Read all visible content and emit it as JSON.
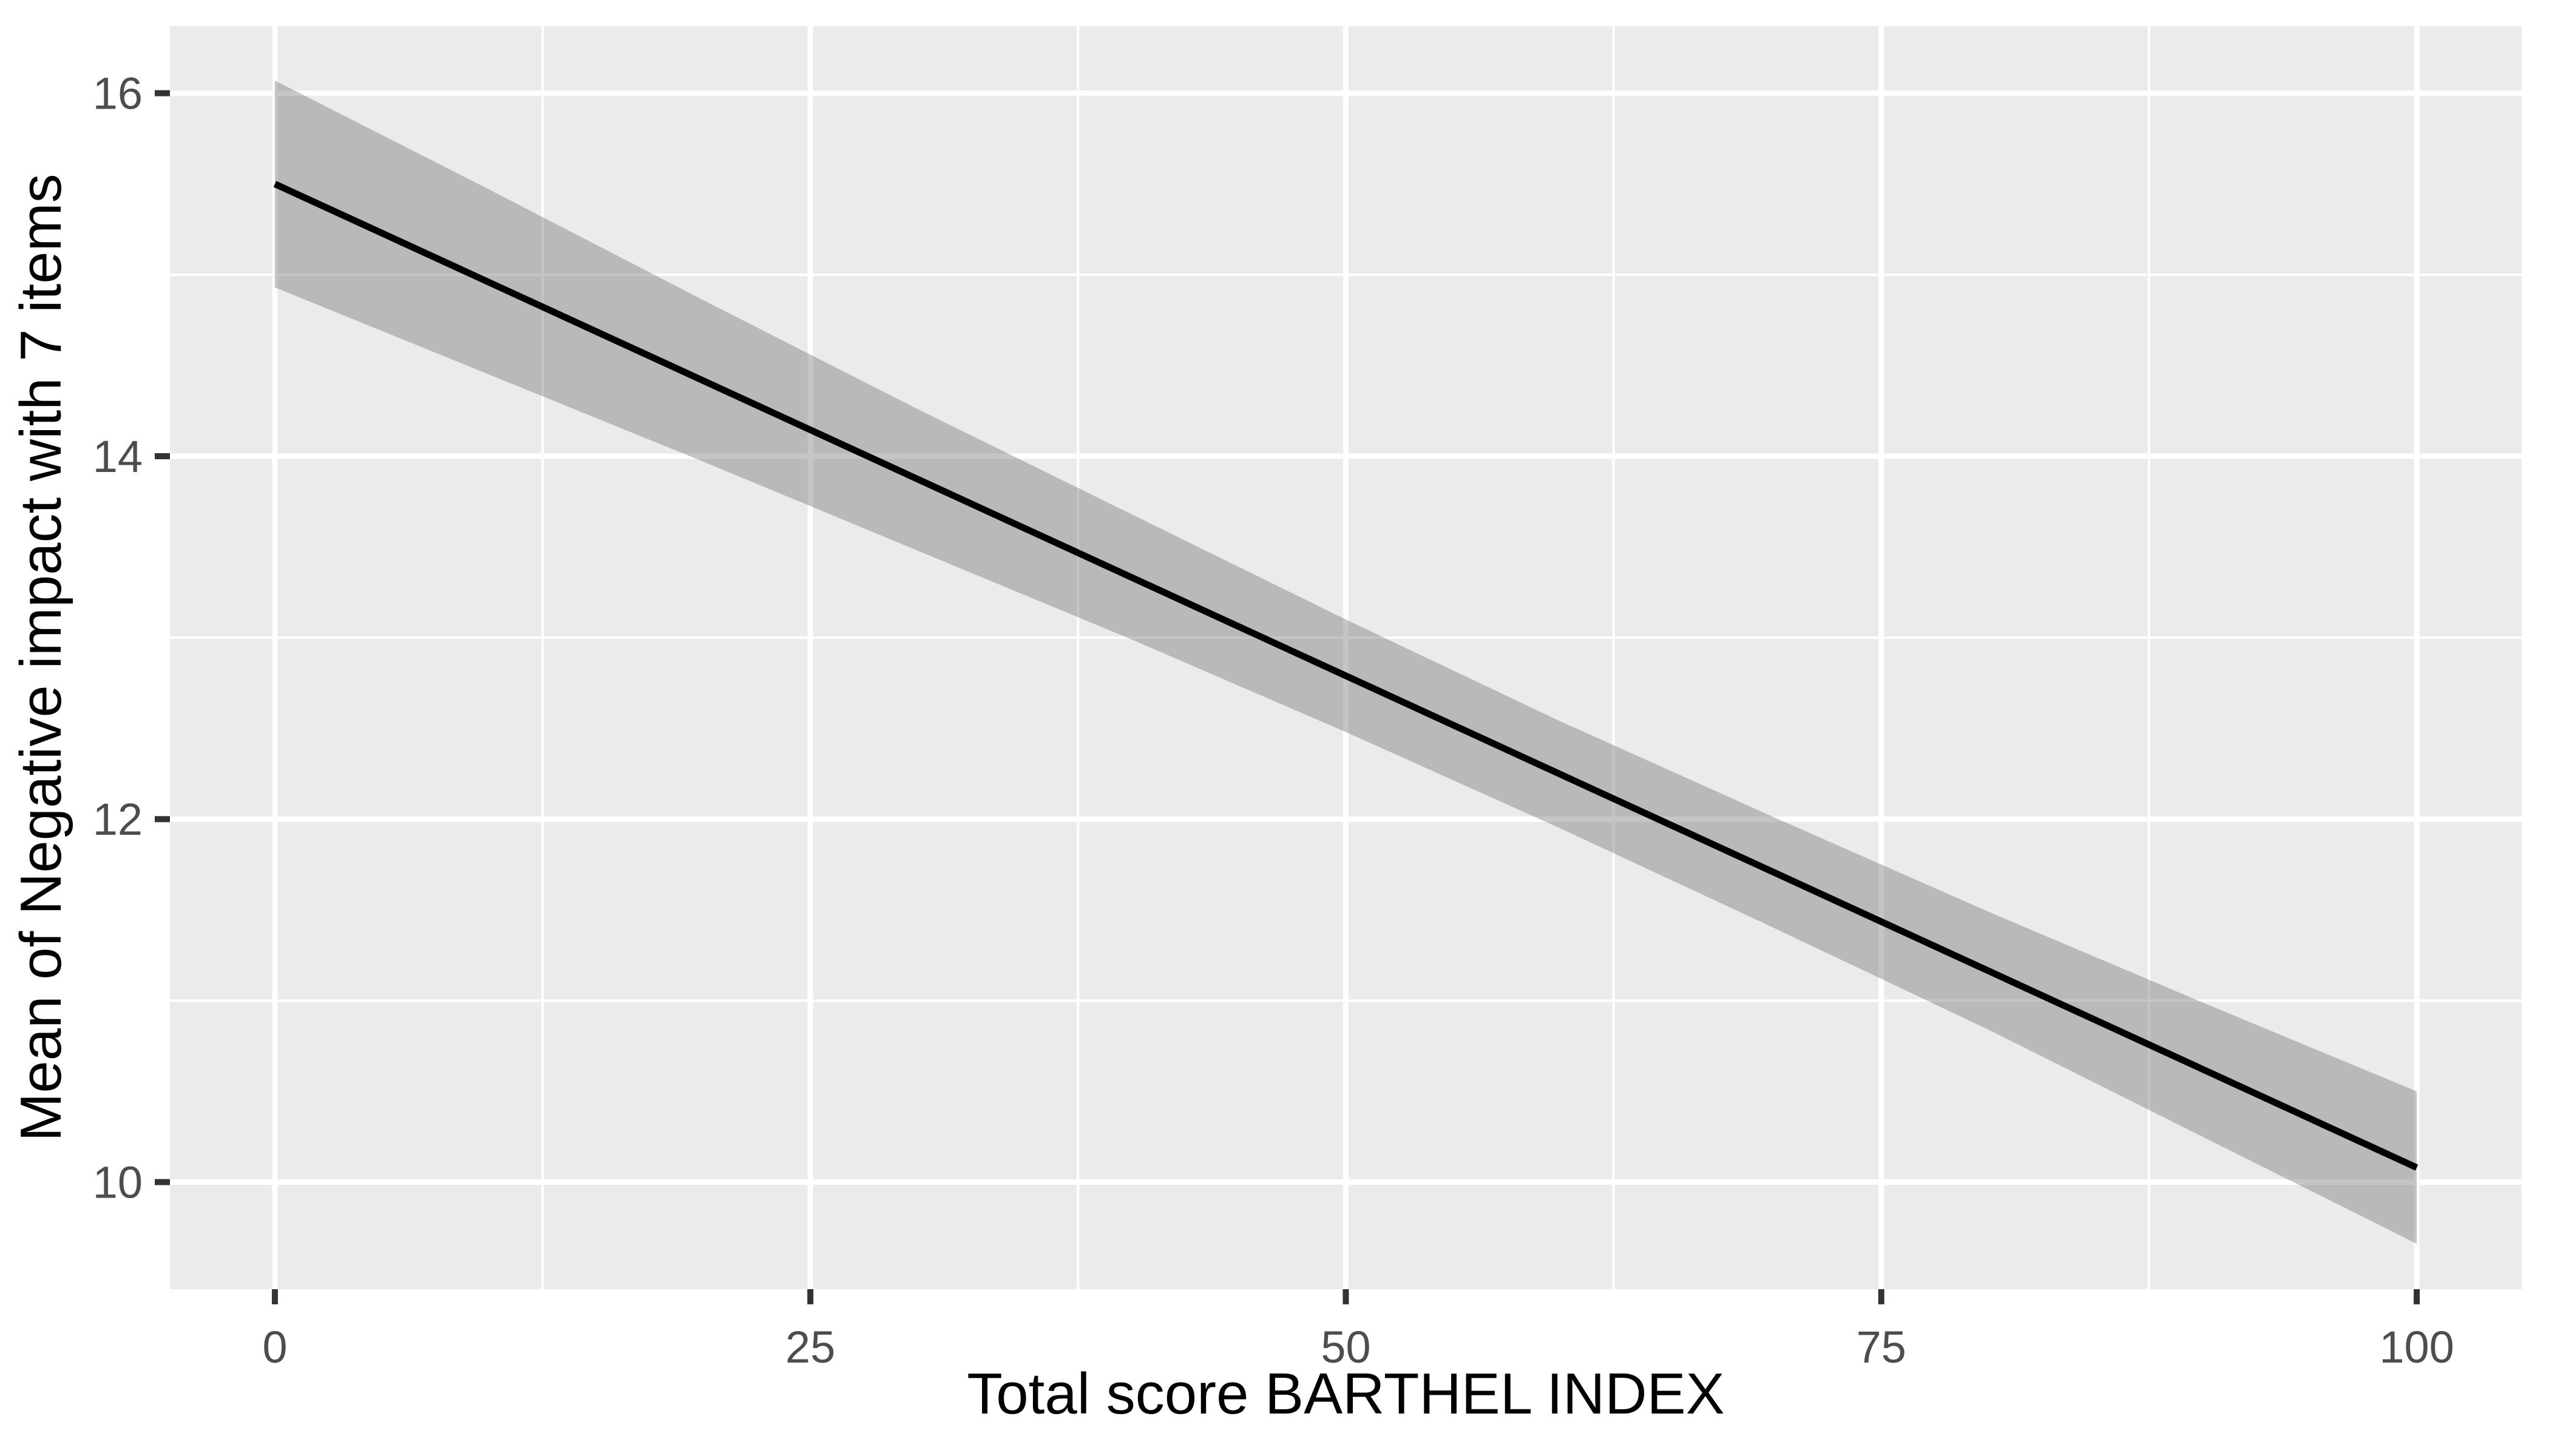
{
  "chart_data": {
    "type": "line",
    "title": "",
    "xlabel": "Total score BARTHEL INDEX",
    "ylabel": "Mean of Negative impact with 7 items",
    "x_ticks": [
      0,
      25,
      50,
      75,
      100
    ],
    "y_ticks": [
      10,
      12,
      14,
      16
    ],
    "x_minor_gridlines": [
      12.5,
      37.5,
      62.5,
      87.5
    ],
    "y_minor_gridlines": [
      11,
      13,
      15
    ],
    "xlim": [
      -4.9,
      104.9
    ],
    "ylim": [
      9.41,
      16.37
    ],
    "grid": "white major and minor gridlines on grey panel",
    "legend": "none",
    "series": [
      {
        "name": "fitted regression line",
        "type": "line",
        "x": [
          0,
          100
        ],
        "y": [
          15.5,
          10.08
        ]
      },
      {
        "name": "confidence band",
        "type": "ribbon",
        "x": [
          0,
          10,
          20,
          30,
          40,
          50,
          60,
          70,
          80,
          90,
          100
        ],
        "upper": [
          16.07,
          15.47,
          14.86,
          14.26,
          13.68,
          13.1,
          12.54,
          12.01,
          11.49,
          10.99,
          10.5
        ],
        "lower": [
          14.93,
          14.45,
          13.97,
          13.48,
          12.99,
          12.48,
          11.95,
          11.4,
          10.84,
          10.25,
          9.66
        ]
      }
    ],
    "colors": {
      "panel_bg": "#EBEBEB",
      "gridline": "#FFFFFF",
      "ribbon": "rgba(110,110,110,0.40)",
      "line": "#000000",
      "tick_label": "#4D4D4D",
      "tick_mark": "#333333",
      "axis_title": "#000000"
    }
  }
}
